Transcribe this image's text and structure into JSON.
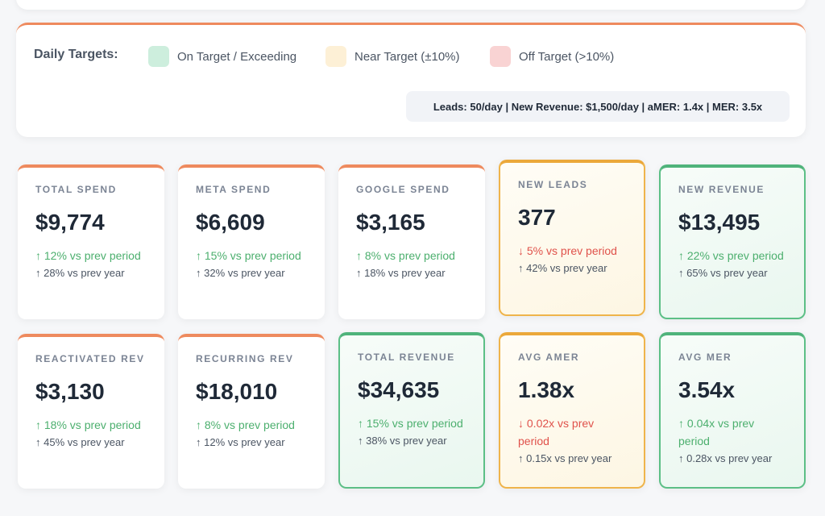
{
  "legend": {
    "title": "Daily Targets:",
    "items": [
      {
        "label": "On Target / Exceeding",
        "color": "#cdeedd"
      },
      {
        "label": "Near Target (±10%)",
        "color": "#fdf0d6"
      },
      {
        "label": "Off Target (>10%)",
        "color": "#f9d3d3"
      }
    ],
    "targets_text": "Leads: 50/day | New Revenue: $1,500/day | aMER: 1.4x | MER: 3.5x"
  },
  "cards": [
    {
      "label": "TOTAL SPEND",
      "value": "$9,774",
      "delta_period": "↑ 12% vs prev period",
      "delta_year": "↑ 28% vs prev year",
      "status": "neutral",
      "period_trend": "up"
    },
    {
      "label": "META SPEND",
      "value": "$6,609",
      "delta_period": "↑ 15% vs prev period",
      "delta_year": "↑ 32% vs prev year",
      "status": "neutral",
      "period_trend": "up"
    },
    {
      "label": "GOOGLE SPEND",
      "value": "$3,165",
      "delta_period": "↑ 8% vs prev period",
      "delta_year": "↑ 18% vs prev year",
      "status": "neutral",
      "period_trend": "up"
    },
    {
      "label": "NEW LEADS",
      "value": "377",
      "delta_period": "↓ 5% vs prev period",
      "delta_year": "↑ 42% vs prev year",
      "status": "orange",
      "period_trend": "down"
    },
    {
      "label": "NEW REVENUE",
      "value": "$13,495",
      "delta_period": "↑ 22% vs prev period",
      "delta_year": "↑ 65% vs prev year",
      "status": "green",
      "period_trend": "up"
    },
    {
      "label": "REACTIVATED REV",
      "value": "$3,130",
      "delta_period": "↑ 18% vs prev period",
      "delta_year": "↑ 45% vs prev year",
      "status": "neutral",
      "period_trend": "up"
    },
    {
      "label": "RECURRING REV",
      "value": "$18,010",
      "delta_period": "↑ 8% vs prev period",
      "delta_year": "↑ 12% vs prev year",
      "status": "neutral",
      "period_trend": "up"
    },
    {
      "label": "TOTAL REVENUE",
      "value": "$34,635",
      "delta_period": "↑ 15% vs prev period",
      "delta_year": "↑ 38% vs prev year",
      "status": "green",
      "period_trend": "up"
    },
    {
      "label": "AVG AMER",
      "value": "1.38x",
      "delta_period": "↓ 0.02x vs prev period",
      "delta_year": "↑ 0.15x vs prev year",
      "status": "orange",
      "period_trend": "down"
    },
    {
      "label": "AVG MER",
      "value": "3.54x",
      "delta_period": "↑ 0.04x vs prev period",
      "delta_year": "↑ 0.28x vs prev year",
      "status": "green",
      "period_trend": "up"
    }
  ]
}
